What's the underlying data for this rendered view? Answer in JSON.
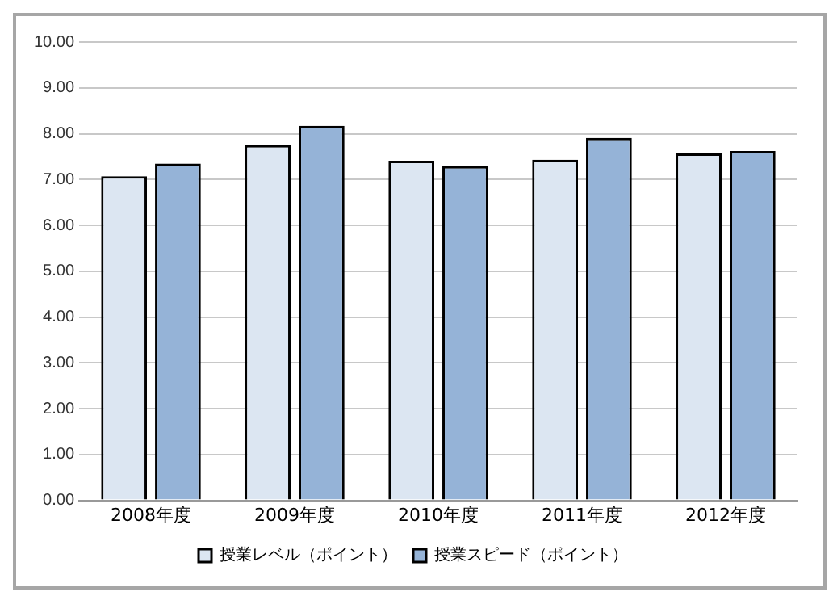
{
  "chart_data": {
    "type": "bar",
    "categories": [
      "2008年度",
      "2009年度",
      "2010年度",
      "2011年度",
      "2012年度"
    ],
    "series": [
      {
        "name": "授業レベル（ポイント）",
        "color": "#dce6f2",
        "values": [
          7.07,
          7.75,
          7.41,
          7.43,
          7.57
        ]
      },
      {
        "name": "授業スピード（ポイント）",
        "color": "#95b3d7",
        "values": [
          7.35,
          8.17,
          7.29,
          7.91,
          7.62
        ]
      }
    ],
    "ylim": [
      0,
      10
    ],
    "yticks": [
      {
        "value": 0,
        "label": "0.00"
      },
      {
        "value": 1,
        "label": "1.00"
      },
      {
        "value": 2,
        "label": "2.00"
      },
      {
        "value": 3,
        "label": "3.00"
      },
      {
        "value": 4,
        "label": "4.00"
      },
      {
        "value": 5,
        "label": "5.00"
      },
      {
        "value": 6,
        "label": "6.00"
      },
      {
        "value": 7,
        "label": "7.00"
      },
      {
        "value": 8,
        "label": "8.00"
      },
      {
        "value": 9,
        "label": "9.00"
      },
      {
        "value": 10,
        "label": "10.00"
      }
    ],
    "grid": "y",
    "legend": "bottom"
  }
}
